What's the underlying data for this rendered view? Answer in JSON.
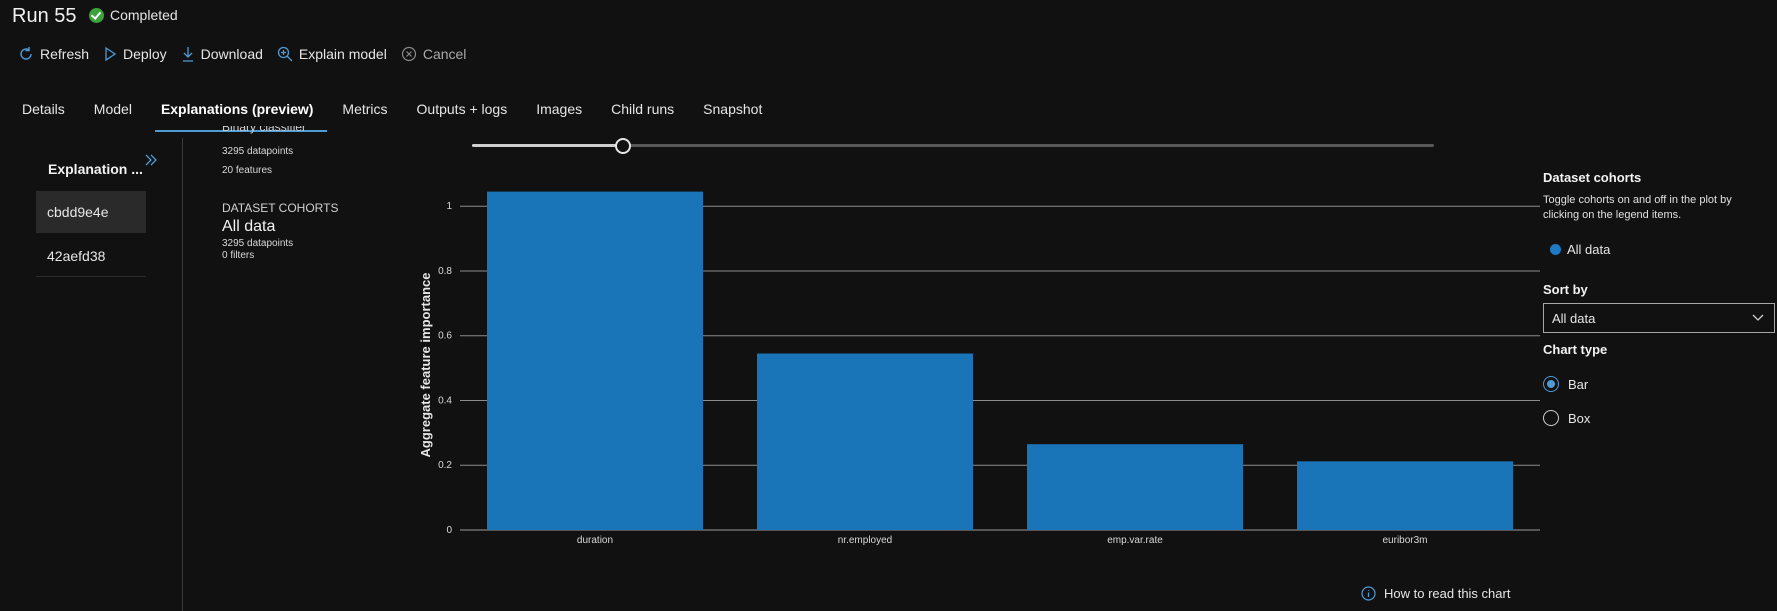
{
  "header": {
    "title": "Run 55",
    "status": "Completed",
    "status_color": "#3ca33c"
  },
  "toolbar": {
    "refresh": {
      "label": "Refresh",
      "icon": "refresh-icon"
    },
    "deploy": {
      "label": "Deploy",
      "icon": "deploy-icon"
    },
    "download": {
      "label": "Download",
      "icon": "download-icon"
    },
    "explain": {
      "label": "Explain model",
      "icon": "search-plus-icon"
    },
    "cancel": {
      "label": "Cancel",
      "icon": "cancel-icon"
    }
  },
  "tabs": [
    {
      "label": "Details"
    },
    {
      "label": "Model"
    },
    {
      "label": "Explanations (preview)",
      "active": true
    },
    {
      "label": "Metrics"
    },
    {
      "label": "Outputs + logs"
    },
    {
      "label": "Images"
    },
    {
      "label": "Child runs"
    },
    {
      "label": "Snapshot"
    }
  ],
  "explanations": {
    "header": "Explanation ...",
    "items": [
      {
        "id": "cbdd9e4e",
        "selected": true
      },
      {
        "id": "42aefd38",
        "selected": false
      }
    ]
  },
  "dataset": {
    "clipped_label": "Binary classifier",
    "datapoints": "3295 datapoints",
    "features": "20 features",
    "cohorts_caption": "DATASET COHORTS",
    "cohort_name": "All data",
    "cohort_datapoints": "3295 datapoints",
    "cohort_filters": "0 filters"
  },
  "slider": {
    "value_fraction": 0.14
  },
  "chart_data": {
    "type": "bar",
    "categories": [
      "duration",
      "nr.employed",
      "emp.var.rate",
      "euribor3m"
    ],
    "series": [
      {
        "name": "All data",
        "values": [
          1.045,
          0.545,
          0.265,
          0.212
        ],
        "color": "#1a75b8"
      }
    ],
    "ylabel": "Aggregate feature importance",
    "ylim": [
      0,
      1.05
    ],
    "yticks": [
      0,
      0.2,
      0.4,
      0.6,
      0.8,
      1
    ],
    "ytick_labels": [
      "0",
      "0.2",
      "0.4",
      "0.6",
      "0.8",
      "1"
    ],
    "grid": true
  },
  "right_panel": {
    "title": "Dataset cohorts",
    "description": "Toggle cohorts on and off in the plot by clicking on the legend items.",
    "legend_item": "All data",
    "legend_color": "#1f7ac3",
    "sort_label": "Sort by",
    "sort_value": "All data",
    "chart_type_label": "Chart type",
    "chart_types": [
      {
        "label": "Bar",
        "selected": true
      },
      {
        "label": "Box",
        "selected": false
      }
    ]
  },
  "footer": {
    "howto": "How to read this chart"
  }
}
